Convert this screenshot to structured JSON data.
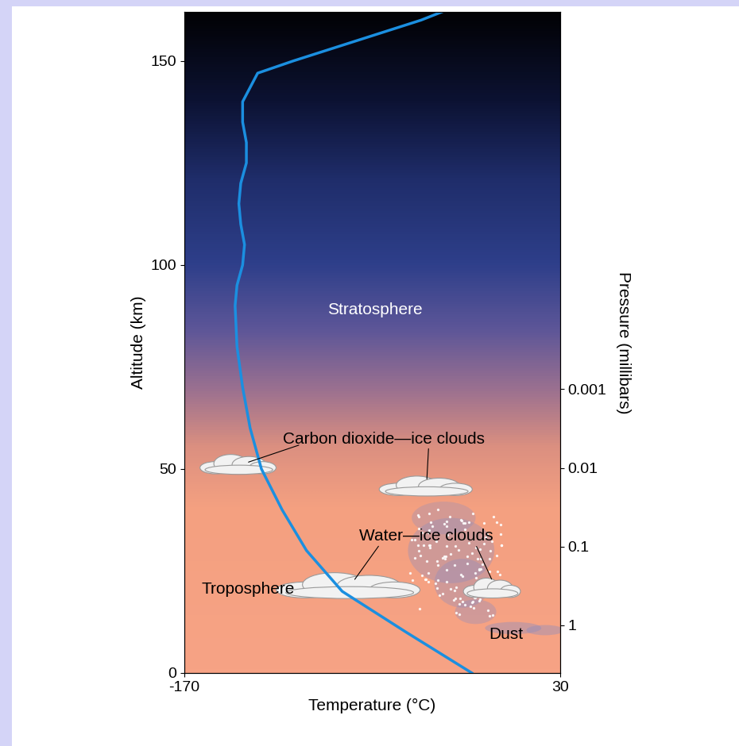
{
  "chart_data": {
    "type": "line",
    "x_label": "Temperature (°C)",
    "y_label": "Altitude (km)",
    "y2_label": "Pressure (millibars)",
    "xlim": [
      -170,
      30
    ],
    "xticks": [
      -170,
      30
    ],
    "ylim": [
      0,
      162
    ],
    "yticks": [
      0,
      50,
      100,
      150
    ],
    "y2lim": [
      4.05,
      1.6e-08
    ],
    "y2ticks": [
      1,
      0.1,
      0.01,
      0.001
    ],
    "log": "y2",
    "series": [
      {
        "color": "#1b8fe0",
        "line_style": "solid",
        "x": [
          -17,
          -52,
          -86,
          -105,
          -118,
          -129,
          -135,
          -139,
          -142,
          -143,
          -142,
          -139,
          -138,
          -140,
          -141,
          -140,
          -137,
          -137,
          -139,
          -139,
          -131,
          -112,
          -78,
          -44,
          -33
        ],
        "values": [
          0,
          10,
          20,
          30,
          40,
          50,
          60,
          70,
          80,
          90,
          95,
          100,
          105,
          110,
          115,
          120,
          125,
          130,
          135,
          140,
          147,
          150,
          155,
          160,
          162
        ]
      }
    ],
    "annotations": [
      "Stratosphere",
      "Troposphere",
      "Carbon dioxide—ice clouds",
      "Water—ice clouds",
      "Dust"
    ]
  }
}
